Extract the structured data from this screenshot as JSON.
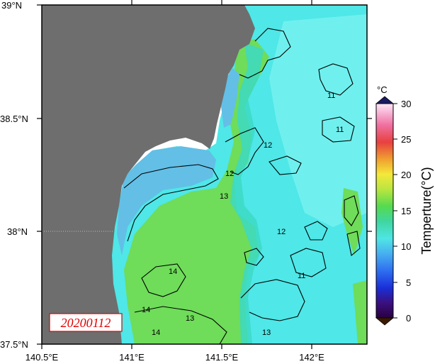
{
  "map": {
    "date_label": "20200112",
    "lat_labels": [
      "39°N",
      "38.5°N",
      "38°N",
      "37.5°N"
    ],
    "lon_labels": [
      "140.5°E",
      "141°E",
      "141.5°E",
      "142°E"
    ],
    "contour_labels": [
      "11",
      "12",
      "12",
      "13",
      "11",
      "12",
      "13",
      "14",
      "14",
      "14",
      "13",
      "11"
    ],
    "colors": {
      "land": "#6e6e6e",
      "sea_cyan": "#4fe7e7",
      "sea_light_cyan": "#6ff0ee",
      "sea_teal": "#3cd9c4",
      "sea_green": "#6fdc5a",
      "sea_blue": "#63bfe6",
      "date_text": "#e00000"
    }
  },
  "colorbar": {
    "unit": "°C",
    "title": "Temperture(°C)",
    "ticks": [
      "30",
      "25",
      "20",
      "15",
      "10",
      "5",
      "0"
    ],
    "range": [
      0,
      30
    ]
  }
}
